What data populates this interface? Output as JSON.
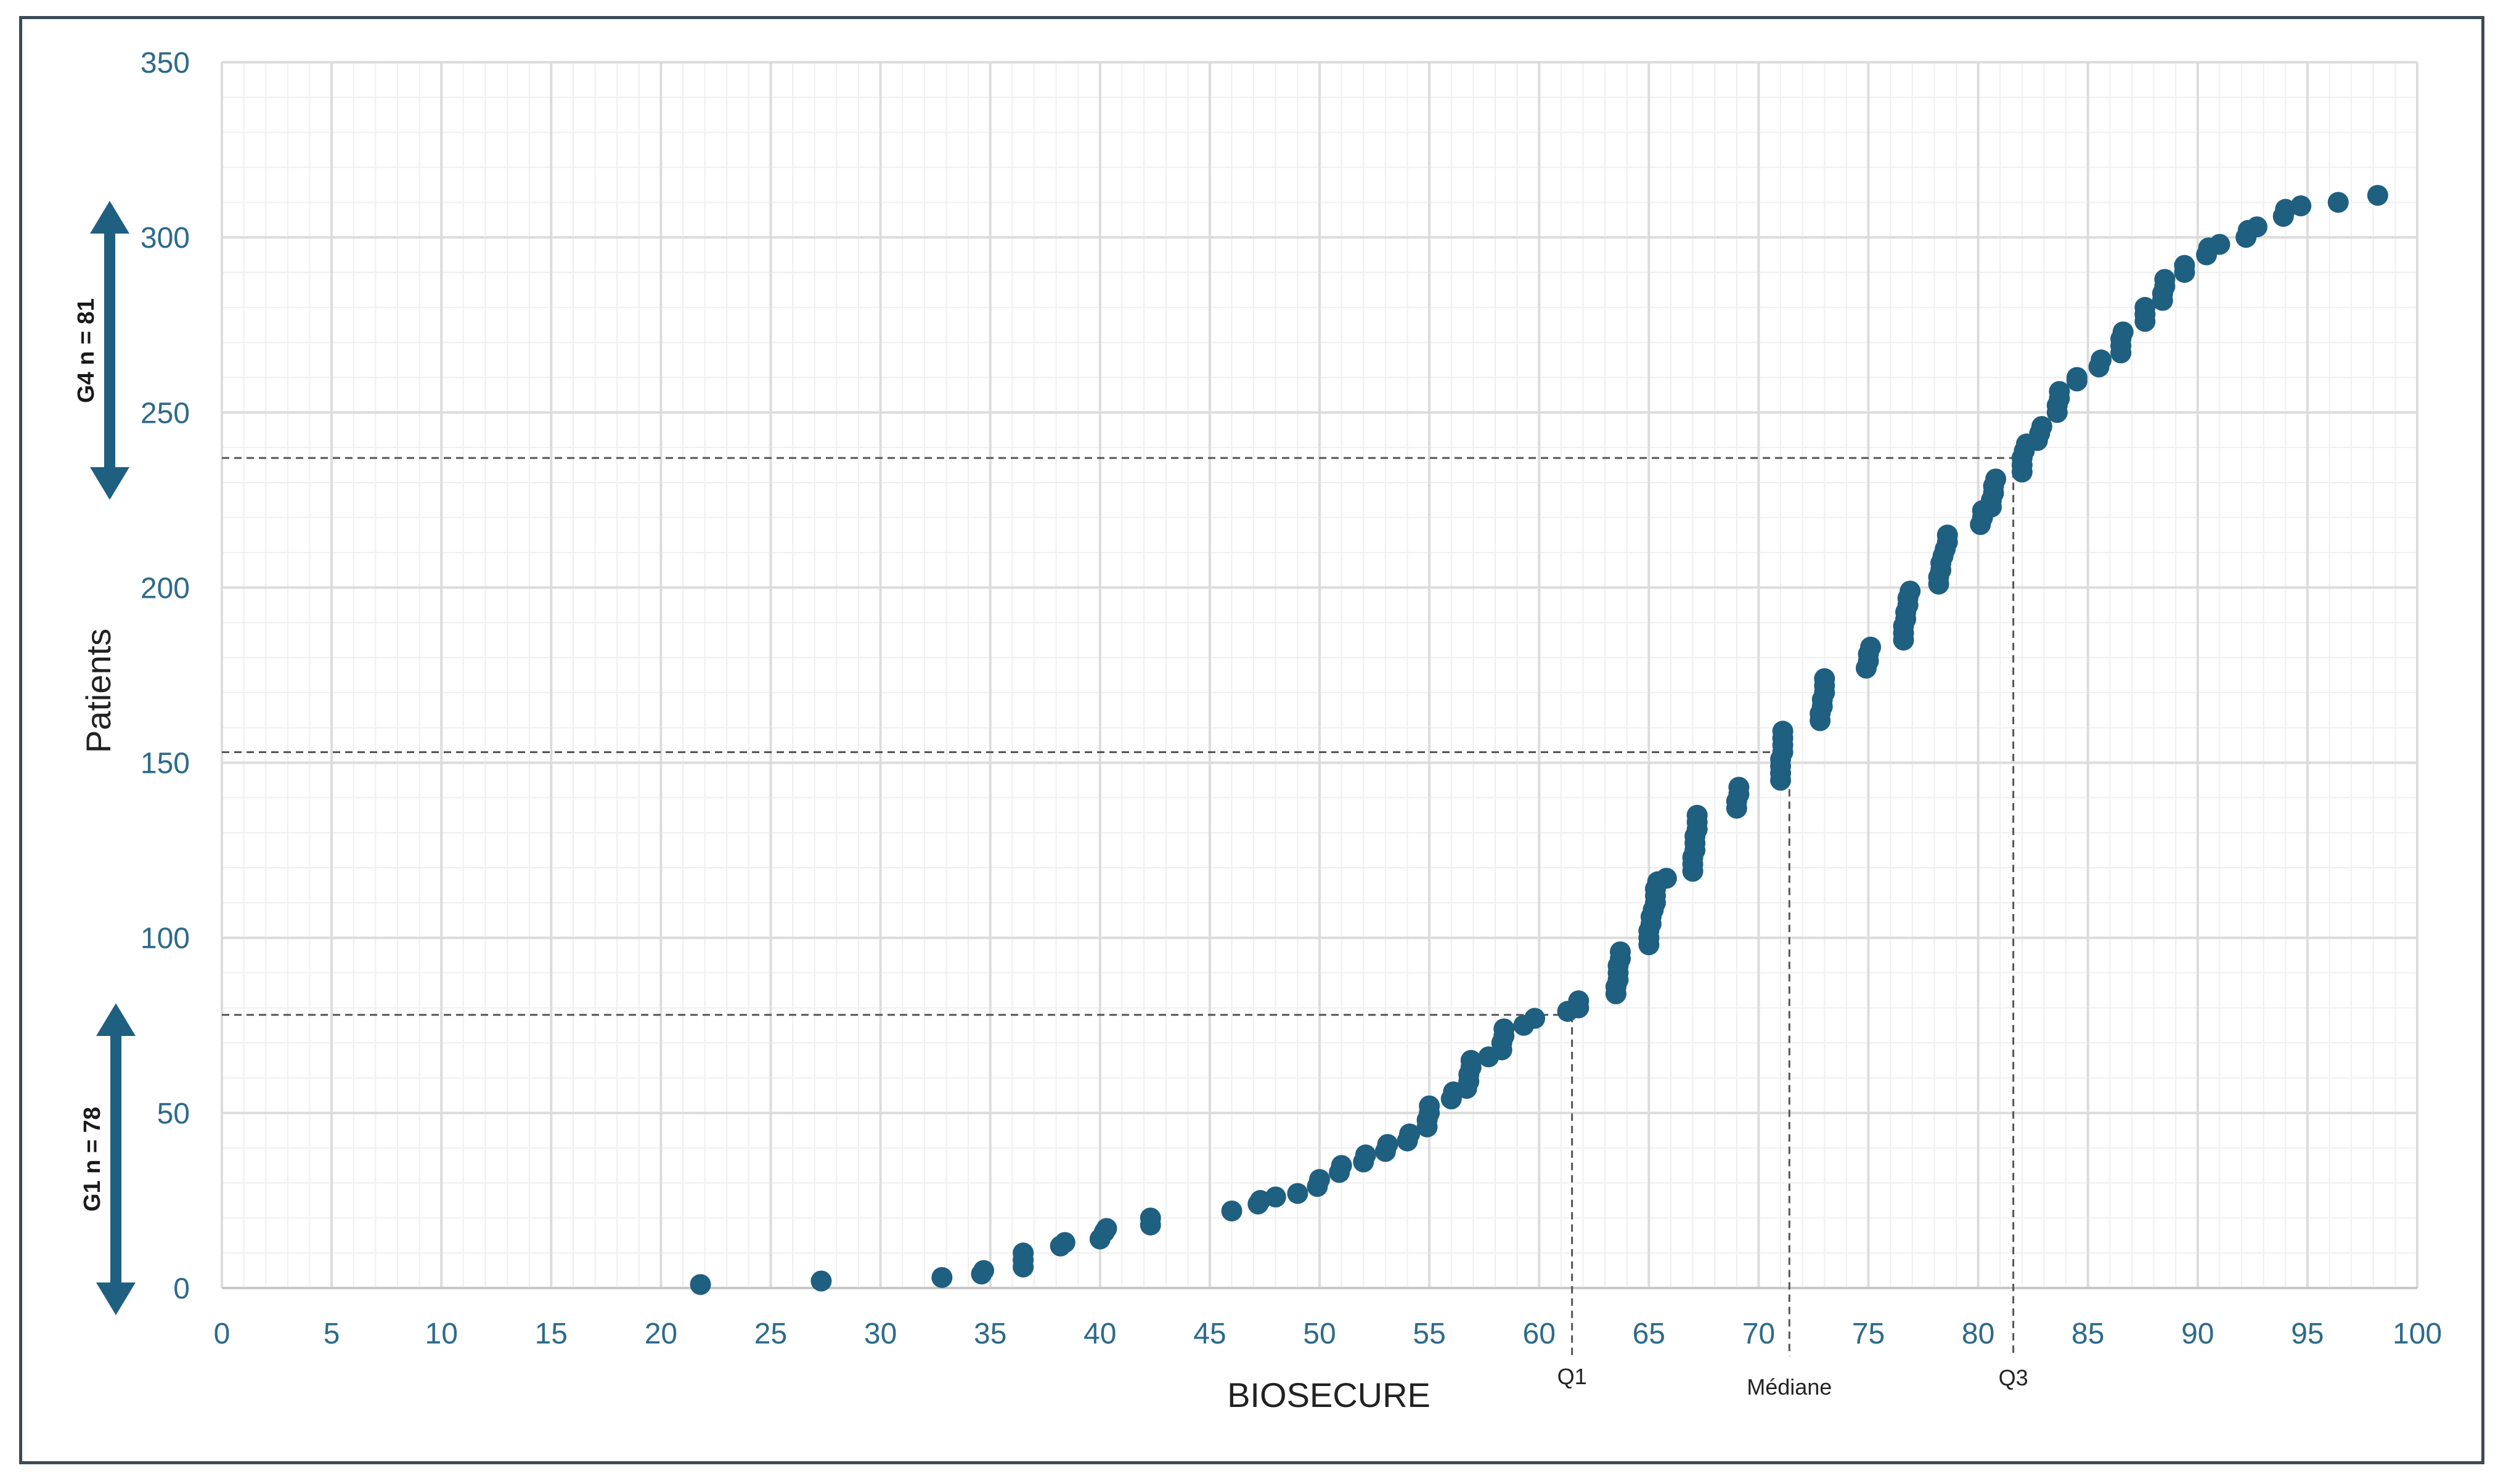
{
  "chart_data": {
    "type": "scatter",
    "xlabel": "BIOSECURE",
    "ylabel": "Patients",
    "xlim": [
      0,
      100
    ],
    "ylim": [
      0,
      350
    ],
    "x_ticks": [
      "0",
      "5",
      "10",
      "15",
      "20",
      "25",
      "30",
      "35",
      "40",
      "45",
      "50",
      "55",
      "60",
      "65",
      "70",
      "75",
      "80",
      "85",
      "90",
      "95",
      "100"
    ],
    "y_ticks": [
      "0",
      "50",
      "100",
      "150",
      "200",
      "250",
      "300",
      "350"
    ],
    "grid": true,
    "marker_color": "#1f5f80",
    "reference_lines": [
      {
        "label": "Q1",
        "x": 61.5,
        "y": 78
      },
      {
        "label": "Médiane",
        "x": 71.4,
        "y": 153
      },
      {
        "label": "Q3",
        "x": 81.6,
        "y": 237
      }
    ],
    "groups": [
      {
        "label": "G1 n = 78",
        "y_range": [
          0,
          78
        ]
      },
      {
        "label": "G4 n = 81",
        "y_range": [
          237,
          311
        ]
      }
    ],
    "points": [
      [
        21.8,
        1
      ],
      [
        27.3,
        2
      ],
      [
        32.8,
        3
      ],
      [
        34.6,
        4
      ],
      [
        34.7,
        5
      ],
      [
        36.5,
        6
      ],
      [
        36.5,
        8
      ],
      [
        36.5,
        10
      ],
      [
        38.2,
        12
      ],
      [
        38.4,
        13
      ],
      [
        40.0,
        14
      ],
      [
        40.2,
        16
      ],
      [
        40.3,
        17
      ],
      [
        42.3,
        18
      ],
      [
        42.3,
        20
      ],
      [
        46.0,
        22
      ],
      [
        47.2,
        24
      ],
      [
        47.3,
        25
      ],
      [
        48.0,
        26
      ],
      [
        49.0,
        27
      ],
      [
        49.9,
        29
      ],
      [
        50.0,
        31
      ],
      [
        50.9,
        33
      ],
      [
        51.0,
        35
      ],
      [
        52.0,
        36
      ],
      [
        52.1,
        38
      ],
      [
        53.0,
        39
      ],
      [
        53.1,
        41
      ],
      [
        54.0,
        42
      ],
      [
        54.1,
        44
      ],
      [
        54.9,
        46
      ],
      [
        54.9,
        48
      ],
      [
        55.0,
        50
      ],
      [
        55.0,
        52
      ],
      [
        56.0,
        54
      ],
      [
        56.1,
        56
      ],
      [
        56.7,
        57
      ],
      [
        56.8,
        59
      ],
      [
        56.8,
        61
      ],
      [
        56.9,
        63
      ],
      [
        56.9,
        65
      ],
      [
        57.7,
        66
      ],
      [
        58.3,
        68
      ],
      [
        58.3,
        70
      ],
      [
        58.4,
        72
      ],
      [
        58.4,
        74
      ],
      [
        59.3,
        75
      ],
      [
        59.8,
        77
      ],
      [
        61.3,
        79
      ],
      [
        61.8,
        80
      ],
      [
        61.8,
        82
      ],
      [
        63.5,
        84
      ],
      [
        63.5,
        86
      ],
      [
        63.6,
        88
      ],
      [
        63.6,
        90
      ],
      [
        63.6,
        92
      ],
      [
        63.7,
        94
      ],
      [
        63.7,
        96
      ],
      [
        65.0,
        98
      ],
      [
        65.0,
        100
      ],
      [
        65.0,
        102
      ],
      [
        65.1,
        104
      ],
      [
        65.1,
        106
      ],
      [
        65.2,
        108
      ],
      [
        65.3,
        110
      ],
      [
        65.3,
        112
      ],
      [
        65.3,
        114
      ],
      [
        65.4,
        116
      ],
      [
        65.8,
        117
      ],
      [
        67.0,
        119
      ],
      [
        67.0,
        121
      ],
      [
        67.0,
        123
      ],
      [
        67.1,
        125
      ],
      [
        67.1,
        127
      ],
      [
        67.1,
        129
      ],
      [
        67.2,
        131
      ],
      [
        67.2,
        133
      ],
      [
        67.2,
        135
      ],
      [
        69.0,
        137
      ],
      [
        69.0,
        139
      ],
      [
        69.1,
        141
      ],
      [
        69.1,
        143
      ],
      [
        71.0,
        145
      ],
      [
        71.0,
        147
      ],
      [
        71.0,
        149
      ],
      [
        71.0,
        151
      ],
      [
        71.1,
        153
      ],
      [
        71.1,
        155
      ],
      [
        71.1,
        157
      ],
      [
        71.1,
        159
      ],
      [
        72.8,
        162
      ],
      [
        72.8,
        164
      ],
      [
        72.9,
        166
      ],
      [
        72.9,
        168
      ],
      [
        73.0,
        170
      ],
      [
        73.0,
        172
      ],
      [
        73.0,
        174
      ],
      [
        74.9,
        177
      ],
      [
        75.0,
        179
      ],
      [
        75.0,
        181
      ],
      [
        75.1,
        183
      ],
      [
        76.6,
        185
      ],
      [
        76.6,
        187
      ],
      [
        76.6,
        189
      ],
      [
        76.7,
        191
      ],
      [
        76.7,
        193
      ],
      [
        76.8,
        195
      ],
      [
        76.8,
        197
      ],
      [
        76.9,
        199
      ],
      [
        78.2,
        201
      ],
      [
        78.2,
        203
      ],
      [
        78.3,
        205
      ],
      [
        78.3,
        207
      ],
      [
        78.4,
        209
      ],
      [
        78.5,
        211
      ],
      [
        78.6,
        213
      ],
      [
        78.6,
        215
      ],
      [
        80.1,
        218
      ],
      [
        80.2,
        220
      ],
      [
        80.2,
        222
      ],
      [
        80.6,
        223
      ],
      [
        80.6,
        225
      ],
      [
        80.7,
        227
      ],
      [
        80.7,
        229
      ],
      [
        80.8,
        231
      ],
      [
        82.0,
        233
      ],
      [
        82.0,
        235
      ],
      [
        82.0,
        237
      ],
      [
        82.1,
        239
      ],
      [
        82.2,
        241
      ],
      [
        82.7,
        242
      ],
      [
        82.8,
        244
      ],
      [
        82.9,
        246
      ],
      [
        83.6,
        250
      ],
      [
        83.6,
        252
      ],
      [
        83.7,
        254
      ],
      [
        83.7,
        256
      ],
      [
        84.5,
        259
      ],
      [
        84.5,
        260
      ],
      [
        85.5,
        263
      ],
      [
        85.6,
        265
      ],
      [
        86.5,
        267
      ],
      [
        86.5,
        269
      ],
      [
        86.5,
        271
      ],
      [
        86.6,
        273
      ],
      [
        87.6,
        276
      ],
      [
        87.6,
        278
      ],
      [
        87.6,
        280
      ],
      [
        88.4,
        282
      ],
      [
        88.4,
        284
      ],
      [
        88.5,
        286
      ],
      [
        88.5,
        288
      ],
      [
        89.4,
        290
      ],
      [
        89.4,
        292
      ],
      [
        90.4,
        295
      ],
      [
        90.5,
        297
      ],
      [
        91.0,
        298
      ],
      [
        92.2,
        300
      ],
      [
        92.3,
        302
      ],
      [
        92.7,
        303
      ],
      [
        93.9,
        306
      ],
      [
        94.0,
        308
      ],
      [
        94.7,
        309
      ],
      [
        96.4,
        310
      ],
      [
        98.2,
        312
      ]
    ]
  }
}
